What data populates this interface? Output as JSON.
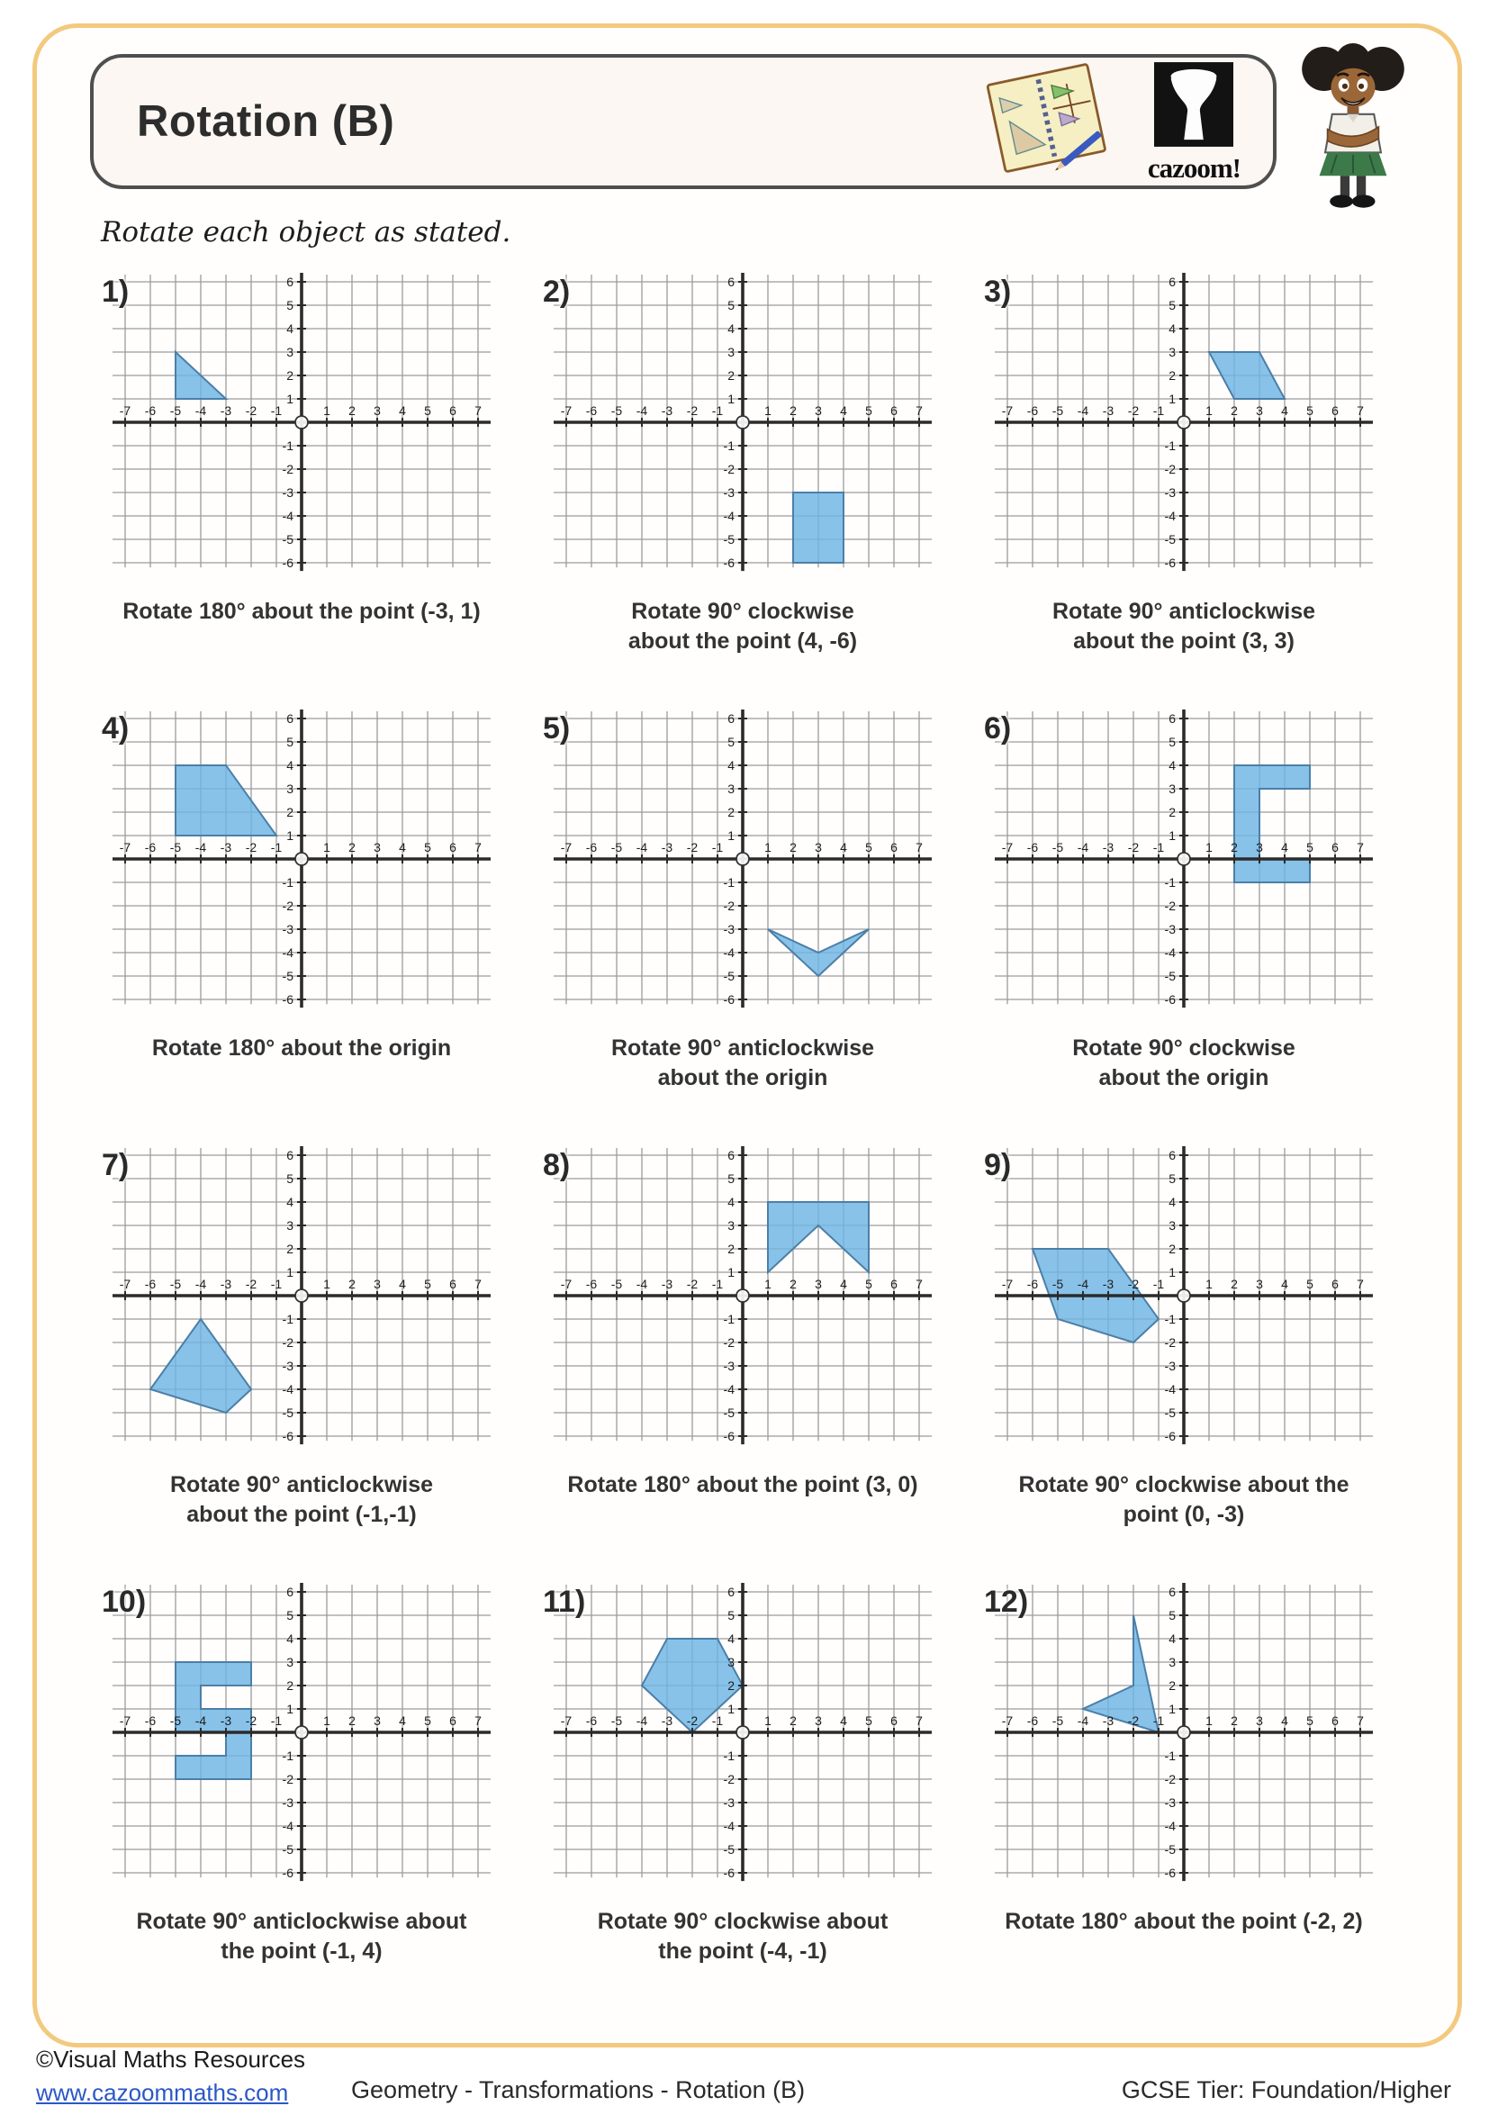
{
  "page": {
    "title": "Rotation (B)",
    "instruction": "Rotate each object as stated.",
    "brand": "cazoom!",
    "footer": {
      "copyright": "©Visual Maths Resources",
      "website": "www.cazoommaths.com",
      "center": "Geometry - Transformations - Rotation (B)",
      "right": "GCSE Tier: Foundation/Higher"
    }
  },
  "grid_config": {
    "xmin": -7,
    "xmax": 7,
    "ymin": -6,
    "ymax": 6,
    "shape_fill": "#6eb5e3",
    "shape_stroke": "#4b7fa8",
    "grid_color": "#9c9c9c",
    "axis_color": "#2b2b2b",
    "label_color": "#1e1e1e",
    "frame_color": "#f3c97e"
  },
  "chart_data": {
    "type": "table",
    "note": "12 coordinate grids, each x -7..7 and y -6..6, each with one blue polygon and a rotation instruction",
    "problems": [
      {
        "number": "1)",
        "caption_lines": [
          "Rotate 180° about the point (-3, 1)"
        ],
        "shape": [
          [
            -5,
            3
          ],
          [
            -3,
            1
          ],
          [
            -5,
            1
          ]
        ]
      },
      {
        "number": "2)",
        "caption_lines": [
          "Rotate 90° clockwise",
          "about the point (4, -6)"
        ],
        "shape": [
          [
            2,
            -3
          ],
          [
            4,
            -3
          ],
          [
            4,
            -6
          ],
          [
            2,
            -6
          ]
        ]
      },
      {
        "number": "3)",
        "caption_lines": [
          "Rotate 90° anticlockwise",
          "about the point (3, 3)"
        ],
        "shape": [
          [
            1,
            3
          ],
          [
            3,
            3
          ],
          [
            4,
            1
          ],
          [
            2,
            1
          ]
        ]
      },
      {
        "number": "4)",
        "caption_lines": [
          "Rotate 180° about the origin"
        ],
        "shape": [
          [
            -5,
            4
          ],
          [
            -3,
            4
          ],
          [
            -1,
            1
          ],
          [
            -5,
            1
          ]
        ]
      },
      {
        "number": "5)",
        "caption_lines": [
          "Rotate 90° anticlockwise",
          "about the origin"
        ],
        "shape": [
          [
            1,
            -3
          ],
          [
            3,
            -4
          ],
          [
            5,
            -3
          ],
          [
            3,
            -5
          ]
        ]
      },
      {
        "number": "6)",
        "caption_lines": [
          "Rotate 90° clockwise",
          "about the origin"
        ],
        "shape": [
          [
            2,
            -1
          ],
          [
            2,
            4
          ],
          [
            5,
            4
          ],
          [
            5,
            3
          ],
          [
            3,
            3
          ],
          [
            3,
            0
          ],
          [
            5,
            0
          ],
          [
            5,
            -1
          ]
        ]
      },
      {
        "number": "7)",
        "caption_lines": [
          "Rotate 90° anticlockwise",
          "about the point (-1,-1)"
        ],
        "shape": [
          [
            -4,
            -1
          ],
          [
            -2,
            -4
          ],
          [
            -3,
            -5
          ],
          [
            -6,
            -4
          ]
        ]
      },
      {
        "number": "8)",
        "caption_lines": [
          "Rotate 180° about the point (3, 0)"
        ],
        "shape": [
          [
            1,
            1
          ],
          [
            1,
            4
          ],
          [
            5,
            4
          ],
          [
            5,
            1
          ],
          [
            3,
            3
          ]
        ]
      },
      {
        "number": "9)",
        "caption_lines": [
          "Rotate 90° clockwise about the",
          "point (0, -3)"
        ],
        "shape": [
          [
            -6,
            2
          ],
          [
            -3,
            2
          ],
          [
            -1,
            -1
          ],
          [
            -2,
            -2
          ],
          [
            -5,
            -1
          ]
        ]
      },
      {
        "number": "10)",
        "caption_lines": [
          "Rotate 90° anticlockwise about",
          "the point (-1, 4)"
        ],
        "shape": [
          [
            -5,
            3
          ],
          [
            -2,
            3
          ],
          [
            -2,
            2
          ],
          [
            -4,
            2
          ],
          [
            -4,
            1
          ],
          [
            -2,
            1
          ],
          [
            -2,
            -2
          ],
          [
            -5,
            -2
          ],
          [
            -5,
            -1
          ],
          [
            -3,
            -1
          ],
          [
            -3,
            0
          ],
          [
            -5,
            0
          ]
        ]
      },
      {
        "number": "11)",
        "caption_lines": [
          "Rotate 90° clockwise about",
          "the point (-4, -1)"
        ],
        "shape": [
          [
            -3,
            4
          ],
          [
            -1,
            4
          ],
          [
            0,
            2
          ],
          [
            -2,
            0
          ],
          [
            -4,
            2
          ]
        ]
      },
      {
        "number": "12)",
        "caption_lines": [
          "Rotate 180° about the point (-2, 2)"
        ],
        "shape": [
          [
            -2,
            5
          ],
          [
            -1,
            0
          ],
          [
            -4,
            1
          ],
          [
            -2,
            2
          ]
        ]
      }
    ]
  }
}
